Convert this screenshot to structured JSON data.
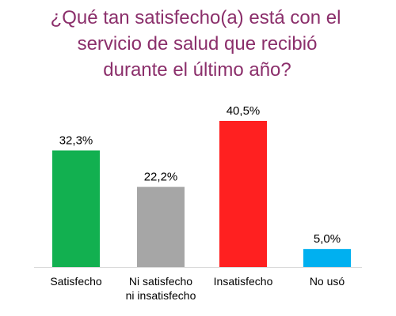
{
  "chart_data": {
    "type": "bar",
    "title_lines": [
      "¿Qué tan satisfecho(a) está con el",
      "servicio de salud que recibió",
      "durante el último año?"
    ],
    "categories": [
      [
        "Satisfecho"
      ],
      [
        "Ni satisfecho",
        "ni insatisfecho"
      ],
      [
        "Insatisfecho"
      ],
      [
        "No usó"
      ]
    ],
    "values": [
      32.3,
      22.2,
      40.5,
      5.0
    ],
    "value_labels": [
      "32,3%",
      "22,2%",
      "40,5%",
      "5,0%"
    ],
    "colors": [
      "#12B050",
      "#A6A6A6",
      "#FF2020",
      "#00B0F0"
    ],
    "ylim": [
      0,
      40.5
    ],
    "grid": false,
    "legend": "none"
  }
}
